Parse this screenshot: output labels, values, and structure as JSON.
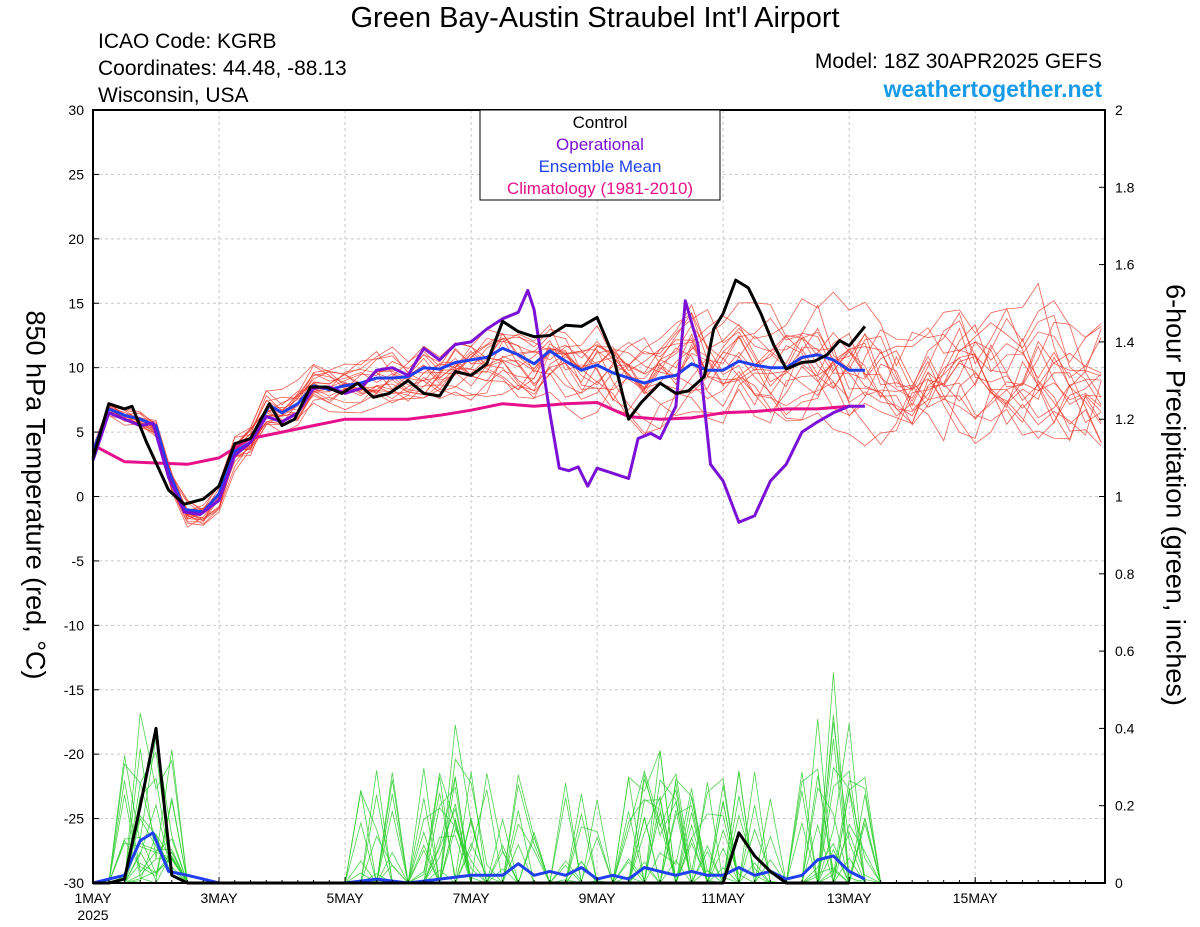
{
  "header": {
    "title": "Green Bay-Austin Straubel Int'l Airport",
    "icao": "ICAO Code: KGRB",
    "coords": "Coordinates: 44.48, -88.13",
    "location": "Wisconsin, USA",
    "model": "Model: 18Z 30APR2025 GEFS",
    "site": "weathertogether.net"
  },
  "colors": {
    "control": "#000000",
    "operational": "#7b10d6",
    "ensemble_mean": "#2040f0",
    "climatology": "#e8108a",
    "members_temp": "#ee3a2a",
    "members_precip": "#2ecc2e",
    "site": "#1a9be8"
  },
  "chart_data": {
    "type": "line",
    "title": "Green Bay-Austin Straubel Int'l Airport",
    "y_left_label": "850 hPa Temperature (red, °C)",
    "y_right_label": "6-hour Precipitation (green, inches)",
    "y_left_range": [
      -30,
      30
    ],
    "y_left_ticks": [
      "30",
      "25",
      "20",
      "15",
      "10",
      "5",
      "0",
      "-5",
      "-10",
      "-15",
      "-20",
      "-25",
      "-30"
    ],
    "y_right_range": [
      0,
      2
    ],
    "y_right_ticks": [
      "2",
      "1.8",
      "1.6",
      "1.4",
      "1.2",
      "1",
      "0.8",
      "0.6",
      "0.4",
      "0.2",
      "0"
    ],
    "x_unit": "days since 1MAY 00Z",
    "x_range": [
      0,
      16
    ],
    "x_ticks": [
      {
        "day": 0,
        "label": "1MAY",
        "sub": "2025"
      },
      {
        "day": 2,
        "label": "3MAY",
        "sub": ""
      },
      {
        "day": 4,
        "label": "5MAY",
        "sub": ""
      },
      {
        "day": 6,
        "label": "7MAY",
        "sub": ""
      },
      {
        "day": 8,
        "label": "9MAY",
        "sub": ""
      },
      {
        "day": 10,
        "label": "11MAY",
        "sub": ""
      },
      {
        "day": 12,
        "label": "13MAY",
        "sub": ""
      },
      {
        "day": 14,
        "label": "15MAY",
        "sub": ""
      }
    ],
    "grid": true,
    "legend": {
      "position": "top-center",
      "entries": [
        {
          "name": "Control",
          "color": "#000000"
        },
        {
          "name": "Operational",
          "color": "#7b10d6"
        },
        {
          "name": "Ensemble Mean",
          "color": "#2040f0"
        },
        {
          "name": "Climatology (1981-2010)",
          "color": "#e8108a"
        }
      ]
    },
    "temperature": {
      "control": [
        [
          0,
          3
        ],
        [
          0.25,
          7.2
        ],
        [
          0.5,
          6.8
        ],
        [
          0.62,
          7
        ],
        [
          0.85,
          4.2
        ],
        [
          1.2,
          0.5
        ],
        [
          1.45,
          -0.6
        ],
        [
          1.75,
          -0.2
        ],
        [
          2.0,
          0.8
        ],
        [
          2.25,
          4.1
        ],
        [
          2.5,
          4.5
        ],
        [
          2.8,
          7.2
        ],
        [
          3.0,
          5.5
        ],
        [
          3.2,
          6
        ],
        [
          3.45,
          8.5
        ],
        [
          3.7,
          8.5
        ],
        [
          3.95,
          8
        ],
        [
          4.2,
          8.8
        ],
        [
          4.45,
          7.7
        ],
        [
          4.7,
          8
        ],
        [
          5.0,
          9
        ],
        [
          5.25,
          8
        ],
        [
          5.5,
          7.8
        ],
        [
          5.75,
          9.7
        ],
        [
          6.0,
          9.4
        ],
        [
          6.25,
          10.3
        ],
        [
          6.5,
          13.6
        ],
        [
          6.75,
          12.8
        ],
        [
          7.0,
          12.4
        ],
        [
          7.25,
          12.5
        ],
        [
          7.5,
          13.3
        ],
        [
          7.75,
          13.2
        ],
        [
          8.0,
          13.9
        ],
        [
          8.25,
          11
        ],
        [
          8.5,
          6
        ],
        [
          8.7,
          7.3
        ],
        [
          9.0,
          8.8
        ],
        [
          9.25,
          8
        ],
        [
          9.45,
          8.2
        ],
        [
          9.7,
          9.3
        ],
        [
          9.85,
          13
        ],
        [
          10.0,
          14.2
        ],
        [
          10.2,
          16.8
        ],
        [
          10.4,
          16.2
        ],
        [
          10.6,
          14.2
        ],
        [
          10.8,
          11.8
        ],
        [
          11.0,
          9.9
        ],
        [
          11.25,
          10.4
        ],
        [
          11.45,
          10.5
        ],
        [
          11.65,
          11
        ],
        [
          11.85,
          12.1
        ],
        [
          12.0,
          11.7
        ],
        [
          12.25,
          13.2
        ]
      ],
      "operational": [
        [
          0,
          2.8
        ],
        [
          0.25,
          6.5
        ],
        [
          0.5,
          6
        ],
        [
          0.75,
          5.5
        ],
        [
          0.95,
          5.7
        ],
        [
          1.2,
          1.5
        ],
        [
          1.45,
          -1.2
        ],
        [
          1.7,
          -1.4
        ],
        [
          2.0,
          -0.3
        ],
        [
          2.25,
          3.2
        ],
        [
          2.5,
          4.2
        ],
        [
          2.75,
          6.2
        ],
        [
          3.0,
          5.8
        ],
        [
          3.25,
          6.5
        ],
        [
          3.5,
          8.4
        ],
        [
          3.75,
          8.5
        ],
        [
          4.0,
          8
        ],
        [
          4.25,
          8.4
        ],
        [
          4.5,
          9.8
        ],
        [
          4.75,
          10
        ],
        [
          5.0,
          9.4
        ],
        [
          5.25,
          11.5
        ],
        [
          5.5,
          10.6
        ],
        [
          5.75,
          11.8
        ],
        [
          6.0,
          12
        ],
        [
          6.25,
          13
        ],
        [
          6.5,
          13.8
        ],
        [
          6.75,
          14.3
        ],
        [
          6.9,
          16
        ],
        [
          7.0,
          14.5
        ],
        [
          7.25,
          6.5
        ],
        [
          7.4,
          2.2
        ],
        [
          7.55,
          2
        ],
        [
          7.7,
          2.3
        ],
        [
          7.85,
          0.8
        ],
        [
          8.0,
          2.2
        ],
        [
          8.25,
          1.8
        ],
        [
          8.5,
          1.4
        ],
        [
          8.65,
          4.5
        ],
        [
          8.85,
          4.9
        ],
        [
          9.0,
          4.5
        ],
        [
          9.25,
          7
        ],
        [
          9.4,
          15.2
        ],
        [
          9.6,
          11.8
        ],
        [
          9.8,
          2.5
        ],
        [
          10.0,
          1.2
        ],
        [
          10.25,
          -2
        ],
        [
          10.5,
          -1.5
        ],
        [
          10.75,
          1.2
        ],
        [
          11.0,
          2.5
        ],
        [
          11.25,
          5
        ],
        [
          11.5,
          5.8
        ],
        [
          11.75,
          6.5
        ],
        [
          12.0,
          7
        ],
        [
          12.25,
          7
        ]
      ],
      "ensemble_mean": [
        [
          0,
          3.5
        ],
        [
          0.25,
          6.8
        ],
        [
          0.5,
          6.3
        ],
        [
          0.75,
          6
        ],
        [
          1.0,
          5.5
        ],
        [
          1.2,
          2
        ],
        [
          1.45,
          -1
        ],
        [
          1.75,
          -1.2
        ],
        [
          2.0,
          0.2
        ],
        [
          2.25,
          3.5
        ],
        [
          2.5,
          4.2
        ],
        [
          2.8,
          7.1
        ],
        [
          3.0,
          6.5
        ],
        [
          3.25,
          7.2
        ],
        [
          3.5,
          8.6
        ],
        [
          3.75,
          8.3
        ],
        [
          4.0,
          8.6
        ],
        [
          4.25,
          8.8
        ],
        [
          4.5,
          9.2
        ],
        [
          4.75,
          9.2
        ],
        [
          5.0,
          9.3
        ],
        [
          5.25,
          10
        ],
        [
          5.5,
          9.9
        ],
        [
          5.75,
          10.4
        ],
        [
          6.0,
          10.6
        ],
        [
          6.25,
          10.8
        ],
        [
          6.5,
          11.5
        ],
        [
          6.75,
          11
        ],
        [
          7.0,
          10.3
        ],
        [
          7.25,
          11.3
        ],
        [
          7.5,
          10.5
        ],
        [
          7.75,
          9.8
        ],
        [
          8.0,
          10.2
        ],
        [
          8.25,
          9.6
        ],
        [
          8.5,
          9.2
        ],
        [
          8.75,
          8.8
        ],
        [
          9.0,
          9.2
        ],
        [
          9.25,
          9.4
        ],
        [
          9.5,
          10.3
        ],
        [
          9.75,
          9.8
        ],
        [
          10.0,
          9.8
        ],
        [
          10.25,
          10.5
        ],
        [
          10.5,
          10.2
        ],
        [
          10.75,
          10
        ],
        [
          11.0,
          10
        ],
        [
          11.25,
          10.8
        ],
        [
          11.5,
          11
        ],
        [
          11.75,
          10.6
        ],
        [
          12.0,
          9.8
        ],
        [
          12.25,
          9.8
        ]
      ],
      "climatology": [
        [
          0,
          4
        ],
        [
          0.5,
          2.7
        ],
        [
          1.0,
          2.6
        ],
        [
          1.5,
          2.5
        ],
        [
          2.0,
          3
        ],
        [
          2.5,
          4.5
        ],
        [
          3.0,
          5
        ],
        [
          3.5,
          5.5
        ],
        [
          4.0,
          6
        ],
        [
          4.5,
          6
        ],
        [
          5.0,
          6
        ],
        [
          5.5,
          6.3
        ],
        [
          6.0,
          6.7
        ],
        [
          6.5,
          7.2
        ],
        [
          7.0,
          7
        ],
        [
          7.5,
          7.2
        ],
        [
          8.0,
          7.3
        ],
        [
          8.5,
          6.2
        ],
        [
          9.0,
          6
        ],
        [
          9.5,
          6.1
        ],
        [
          10.0,
          6.5
        ],
        [
          10.5,
          6.6
        ],
        [
          11.0,
          6.8
        ],
        [
          11.5,
          6.8
        ],
        [
          12.0,
          7
        ]
      ]
    },
    "precipitation": {
      "control": [
        [
          0,
          0
        ],
        [
          0.25,
          0
        ],
        [
          0.5,
          0.01
        ],
        [
          0.75,
          0.2
        ],
        [
          1.0,
          0.4
        ],
        [
          1.25,
          0.02
        ],
        [
          1.5,
          0
        ],
        [
          2.0,
          0
        ],
        [
          4.0,
          0
        ],
        [
          6.0,
          0
        ],
        [
          8.0,
          0
        ],
        [
          10.0,
          0
        ],
        [
          10.25,
          0.13
        ],
        [
          10.5,
          0.07
        ],
        [
          10.75,
          0.03
        ],
        [
          11.0,
          0
        ],
        [
          12.0,
          0
        ]
      ],
      "ensemble_mean": [
        [
          0,
          0
        ],
        [
          0.25,
          0.01
        ],
        [
          0.5,
          0.02
        ],
        [
          0.75,
          0.11
        ],
        [
          0.95,
          0.13
        ],
        [
          1.2,
          0.03
        ],
        [
          1.5,
          0.02
        ],
        [
          1.75,
          0.01
        ],
        [
          2.0,
          0
        ],
        [
          3.0,
          0
        ],
        [
          4.0,
          0
        ],
        [
          4.5,
          0.01
        ],
        [
          5.0,
          0
        ],
        [
          5.5,
          0.01
        ],
        [
          6.0,
          0.02
        ],
        [
          6.5,
          0.02
        ],
        [
          6.75,
          0.05
        ],
        [
          7.0,
          0.02
        ],
        [
          7.25,
          0.03
        ],
        [
          7.5,
          0.02
        ],
        [
          7.75,
          0.04
        ],
        [
          8.0,
          0.01
        ],
        [
          8.25,
          0.02
        ],
        [
          8.5,
          0.01
        ],
        [
          8.75,
          0.04
        ],
        [
          9.0,
          0.03
        ],
        [
          9.25,
          0.02
        ],
        [
          9.5,
          0.03
        ],
        [
          9.75,
          0.02
        ],
        [
          10.0,
          0.02
        ],
        [
          10.25,
          0.04
        ],
        [
          10.5,
          0.02
        ],
        [
          10.75,
          0.03
        ],
        [
          11.0,
          0.01
        ],
        [
          11.25,
          0.02
        ],
        [
          11.5,
          0.06
        ],
        [
          11.75,
          0.07
        ],
        [
          12.0,
          0.03
        ],
        [
          12.25,
          0.01
        ]
      ]
    }
  }
}
